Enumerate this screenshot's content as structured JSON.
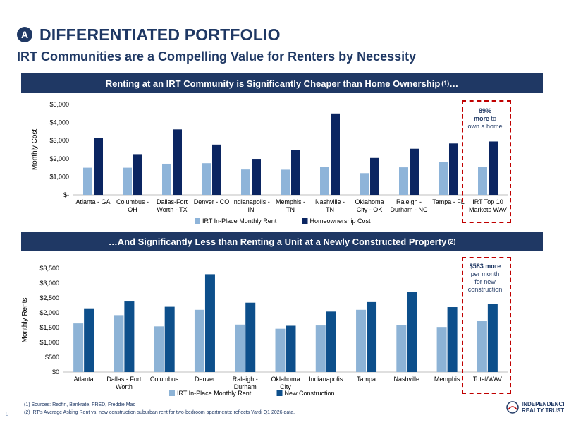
{
  "header": {
    "badge": "A",
    "title": "DIFFERENTIATED PORTFOLIO",
    "subtitle": "IRT Communities are a Compelling Value for Renters by Necessity"
  },
  "banner1": {
    "text": "Renting at an IRT Community is Significantly Cheaper than Home Ownership ",
    "sup": "(1)",
    "suffix": "…"
  },
  "banner2": {
    "prefix": "…",
    "text": "And Significantly Less than Renting a Unit at a Newly Constructed Property ",
    "sup": "(2)"
  },
  "callout1": {
    "line1": "89%",
    "line2": "more",
    "line3": " to",
    "line4": "own a home"
  },
  "callout2": {
    "line1": "$583 more",
    "line2": "per month",
    "line3": "for new",
    "line4": "construction"
  },
  "footnotes": {
    "f1": "(1)    Sources: Redfin, Bankrate, FRED, Freddie Mac",
    "f2": "(2)    IRT's Average Asking Rent vs. new construction suburban rent for two-bedroom apartments; reflects Yardi Q1 2026 data."
  },
  "page_number": "9",
  "logo": {
    "line1": "INDEPENDENCE",
    "line2": "REALTY TRUST"
  },
  "colors": {
    "navy": "#1f3864",
    "light": "#8eb4d9",
    "dark_series": "#0b2561",
    "new_construction": "#0d4f8b",
    "light2": "#8db3d6",
    "callout": "#c00000"
  },
  "chart_data": [
    {
      "type": "bar",
      "ylabel": "Monthly Cost",
      "ylim": [
        0,
        5000
      ],
      "yticks": [
        "$-",
        "$1,000",
        "$2,000",
        "$3,000",
        "$4,000",
        "$5,000"
      ],
      "categories": [
        [
          "Atlanta - GA"
        ],
        [
          "Columbus -",
          "OH"
        ],
        [
          "Dallas-Fort",
          "Worth - TX"
        ],
        [
          "Denver - CO"
        ],
        [
          "Indianapolis -",
          "IN"
        ],
        [
          "Memphis -",
          "TN"
        ],
        [
          "Nashville -",
          "TN"
        ],
        [
          "Oklahoma",
          "City - OK"
        ],
        [
          "Raleigh -",
          "Durham - NC"
        ],
        [
          "Tampa - FL"
        ],
        [
          "IRT Top 10",
          "Markets WAV"
        ]
      ],
      "series": [
        {
          "name": "IRT In-Place Monthly Rent",
          "values": [
            1500,
            1500,
            1720,
            1750,
            1400,
            1390,
            1540,
            1200,
            1520,
            1830,
            1560
          ]
        },
        {
          "name": "Homeownership Cost",
          "values": [
            3150,
            2250,
            3620,
            2780,
            1990,
            2490,
            4500,
            2040,
            2550,
            2840,
            2950
          ]
        }
      ],
      "grid": false,
      "legend": "bottom"
    },
    {
      "type": "bar",
      "ylabel": "Monthly Rents",
      "ylim": [
        0,
        3500
      ],
      "yticks": [
        "$0",
        "$500",
        "$1,000",
        "$1,500",
        "$2,000",
        "$2,500",
        "$3,000",
        "$3,500"
      ],
      "categories": [
        [
          "Atlanta"
        ],
        [
          "Dallas - Fort",
          "Worth"
        ],
        [
          "Columbus"
        ],
        [
          "Denver"
        ],
        [
          "Raleigh -",
          "Durham"
        ],
        [
          "Oklahoma",
          "City"
        ],
        [
          "Indianapolis"
        ],
        [
          "Tampa"
        ],
        [
          "Nashville"
        ],
        [
          "Memphis"
        ],
        [
          "Total/WAV"
        ]
      ],
      "series": [
        {
          "name": "IRT In-Place Monthly Rent",
          "values": [
            1640,
            1920,
            1540,
            2100,
            1600,
            1460,
            1570,
            2100,
            1580,
            1520,
            1720
          ]
        },
        {
          "name": "New Construction",
          "values": [
            2150,
            2380,
            2200,
            3300,
            2340,
            1560,
            2040,
            2360,
            2710,
            2190,
            2300
          ]
        }
      ],
      "grid": false,
      "legend": "bottom"
    }
  ]
}
